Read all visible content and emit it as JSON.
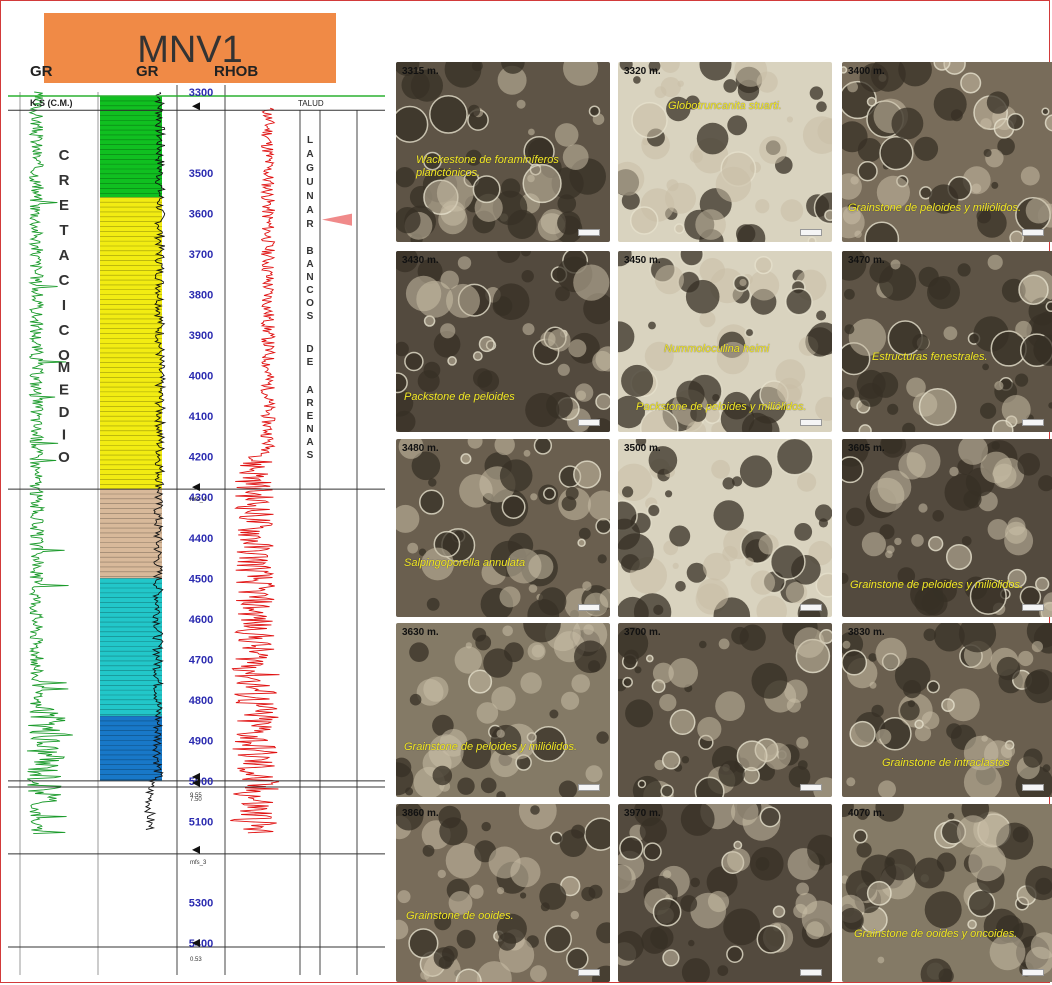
{
  "well_title": "MNV1",
  "headers": {
    "gr_left": "GR",
    "gr_mid": "GR",
    "rhob": "RHOB",
    "talud": "TALUD"
  },
  "ks_label": "K.S (C.M.)",
  "vertical_labels": {
    "cretacico": "C R E T A C I C O",
    "medio": "M E D I O",
    "lagunar": "L A G U N A R",
    "bancos": "B A N C O S",
    "de": "D E",
    "arenas": "A R E N A S"
  },
  "depth_ticks": [
    "3300",
    "3500",
    "3600",
    "3700",
    "3800",
    "3900",
    "4000",
    "4100",
    "4200",
    "4300",
    "4400",
    "4500",
    "4600",
    "4700",
    "4800",
    "4900",
    "5000",
    "5100",
    "5300",
    "5400"
  ],
  "marker_labels": [
    "mfs_4",
    "mfs_3",
    "9.55",
    "7.50",
    "0.53"
  ],
  "lithology_colors": {
    "green": "#10c020",
    "yellow": "#f2ec12",
    "tan": "#d8b99a",
    "cyan": "#22c7c9",
    "blue": "#1878c8"
  },
  "thumbnails": [
    {
      "depth": "3315 m.",
      "caption": "Wackestone de foraminíferos planctónicos."
    },
    {
      "depth": "3320 m.",
      "caption": "Globotruncanita stuarti."
    },
    {
      "depth": "3400 m.",
      "caption": "Grainstone de peloides y miliólidos."
    },
    {
      "depth": "3430 m.",
      "caption": "Packstone de peloides"
    },
    {
      "depth": "3450 m.",
      "caption": "Nummoloculina heimi"
    },
    {
      "depth": "3470 m.",
      "caption": "Estructuras fenestrales."
    },
    {
      "depth": "3480 m.",
      "caption": "Salpingoporella annulata"
    },
    {
      "depth": "3500 m.",
      "caption": ""
    },
    {
      "depth": "3605 m.",
      "caption": "Grainstone de peloides y miliólidos."
    },
    {
      "depth": "3630 m.",
      "caption": "Grainstone de peloides y miliólidos."
    },
    {
      "depth": "3700 m.",
      "caption": ""
    },
    {
      "depth": "3830 m.",
      "caption": "Grainstone de intraclastos"
    },
    {
      "depth": "3860 m.",
      "caption": "Grainstone de ooides."
    },
    {
      "depth": "3970 m.",
      "caption": ""
    },
    {
      "depth": "4070 m.",
      "caption": "Grainstone de ooides y oncoides."
    }
  ],
  "extra_caption": "Packstone de peloides y miliólidos."
}
